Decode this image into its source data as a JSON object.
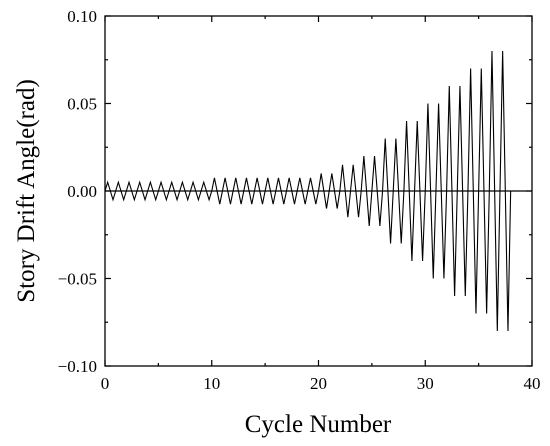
{
  "chart_data": {
    "type": "line",
    "title": "",
    "xlabel": "Cycle Number",
    "ylabel": "Story Drift Angle(rad)",
    "xlim": [
      0,
      40
    ],
    "ylim": [
      -0.1,
      0.1
    ],
    "x_ticks": [
      0,
      10,
      20,
      30,
      40
    ],
    "x_tick_labels": [
      "0",
      "10",
      "20",
      "30",
      "40"
    ],
    "y_ticks": [
      0.1,
      0.05,
      0.0,
      -0.05,
      -0.1
    ],
    "y_tick_labels": [
      "0.10",
      "0.05",
      "0.00",
      "−0.05",
      "−0.10"
    ],
    "grid": false,
    "legend": "none",
    "zero_line": true,
    "series": [
      {
        "amplitude_blocks": [
          {
            "cycles": 10,
            "amplitude": 0.005
          },
          {
            "cycles": 10,
            "amplitude": 0.0075
          },
          {
            "cycles": 2,
            "amplitude": 0.01
          },
          {
            "cycles": 2,
            "amplitude": 0.015
          },
          {
            "cycles": 2,
            "amplitude": 0.02
          },
          {
            "cycles": 2,
            "amplitude": 0.03
          },
          {
            "cycles": 2,
            "amplitude": 0.04
          },
          {
            "cycles": 2,
            "amplitude": 0.05
          },
          {
            "cycles": 2,
            "amplitude": 0.06
          },
          {
            "cycles": 2,
            "amplitude": 0.07
          },
          {
            "cycles": 2,
            "amplitude": 0.08
          }
        ],
        "color": "#000000"
      }
    ]
  }
}
